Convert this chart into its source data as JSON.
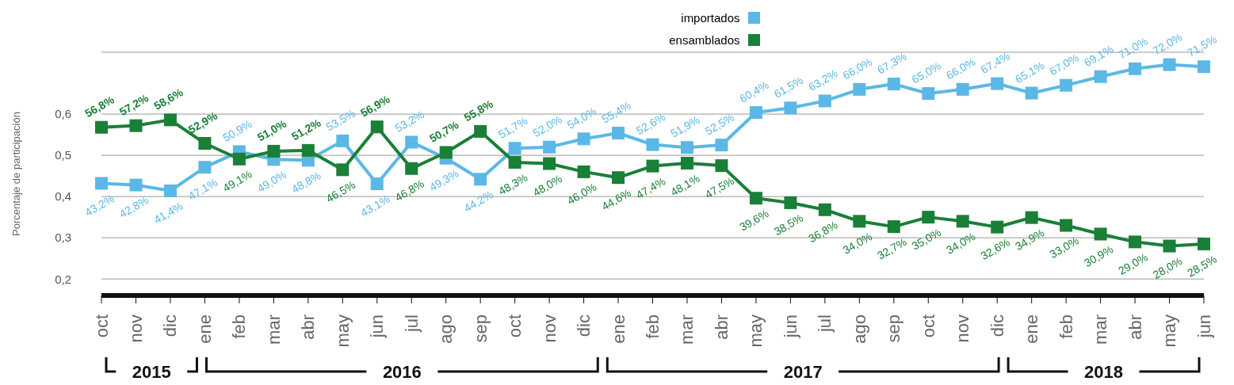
{
  "chart_data": {
    "type": "line",
    "ylabel": "Porcentaje de participación",
    "categories": [
      "oct",
      "nov",
      "dic",
      "ene",
      "feb",
      "mar",
      "abr",
      "may",
      "jun",
      "jul",
      "ago",
      "sep",
      "oct",
      "nov",
      "dic",
      "ene",
      "feb",
      "mar",
      "abr",
      "may",
      "jun",
      "jul",
      "ago",
      "sep",
      "oct",
      "nov",
      "dic",
      "ene",
      "feb",
      "mar",
      "abr",
      "may",
      "jun"
    ],
    "series": [
      {
        "name": "importados",
        "color": "#5bb8e6",
        "values": [
          0.432,
          0.428,
          0.414,
          0.471,
          0.509,
          0.49,
          0.488,
          0.535,
          0.431,
          0.532,
          0.493,
          0.442,
          0.517,
          0.52,
          0.54,
          0.554,
          0.526,
          0.519,
          0.525,
          0.604,
          0.615,
          0.632,
          0.66,
          0.673,
          0.65,
          0.66,
          0.674,
          0.651,
          0.67,
          0.691,
          0.71,
          0.72,
          0.715
        ],
        "value_labels": [
          "43,2%",
          "42,8%",
          "41,4%",
          "47,1%",
          "50,9%",
          "49,0%",
          "48,8%",
          "53,5%",
          "43,1%",
          "53,2%",
          "49,3%",
          "44,2%",
          "51,7%",
          "52,0%",
          "54,0%",
          "55,4%",
          "52,6%",
          "51,9%",
          "52,5%",
          "60,4%",
          "61,5%",
          "63,2%",
          "66,0%",
          "67,3%",
          "65,0%",
          "66,0%",
          "67,4%",
          "65,1%",
          "67,0%",
          "69,1%",
          "71,0%",
          "72,0%",
          "71,5%"
        ]
      },
      {
        "name": "ensamblados",
        "color": "#1a7f37",
        "values": [
          0.568,
          0.572,
          0.586,
          0.529,
          0.491,
          0.51,
          0.512,
          0.465,
          0.569,
          0.468,
          0.507,
          0.558,
          0.483,
          0.48,
          0.46,
          0.446,
          0.474,
          0.481,
          0.475,
          0.396,
          0.385,
          0.368,
          0.34,
          0.327,
          0.35,
          0.34,
          0.326,
          0.349,
          0.33,
          0.309,
          0.29,
          0.28,
          0.285
        ],
        "value_labels": [
          "56,8%",
          "57,2%",
          "58,6%",
          "52,9%",
          "49,1%",
          "51,0%",
          "51,2%",
          "46,5%",
          "56,9%",
          "46,8%",
          "50,7%",
          "55,8%",
          "48,3%",
          "48,0%",
          "46,0%",
          "44,6%",
          "47,4%",
          "48,1%",
          "47,5%",
          "39,6%",
          "38,5%",
          "36,8%",
          "34,0%",
          "32,7%",
          "35,0%",
          "34,0%",
          "32,6%",
          "34,9%",
          "33,0%",
          "30,9%",
          "29,0%",
          "28,0%",
          "28,5%"
        ]
      }
    ],
    "ylim": [
      0.16,
      0.75
    ],
    "yticks": [
      {
        "value": 0.2,
        "label": "0,2"
      },
      {
        "value": 0.3,
        "label": "0,3"
      },
      {
        "value": 0.4,
        "label": "0,4"
      },
      {
        "value": 0.5,
        "label": "0,5"
      },
      {
        "value": 0.6,
        "label": "0,6"
      }
    ],
    "grid": "y",
    "legend": "top",
    "marker": "square",
    "line_style": "solid",
    "annotations": [
      "2015",
      "2016",
      "2017",
      "2018"
    ]
  }
}
